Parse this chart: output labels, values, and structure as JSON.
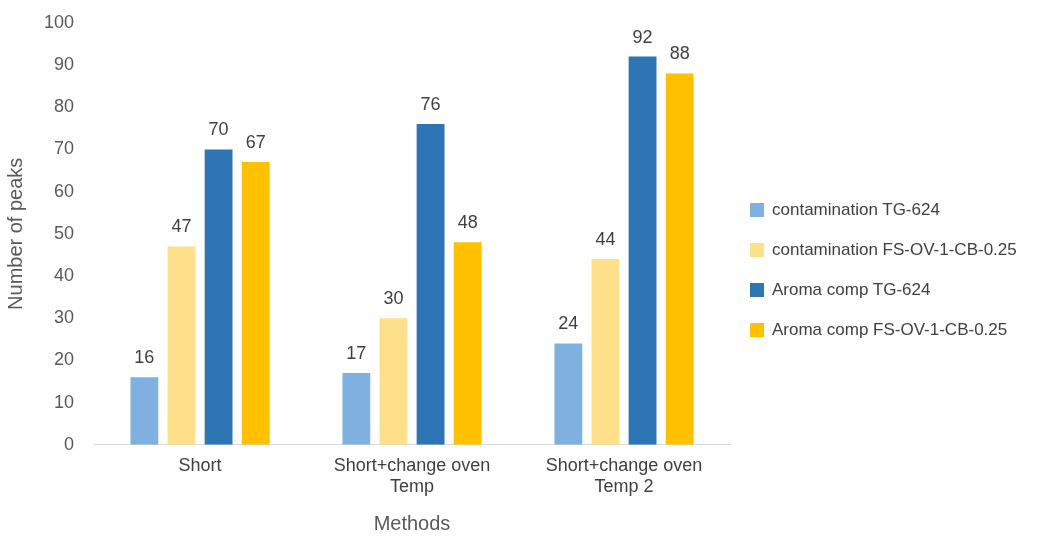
{
  "chart_data": {
    "type": "bar",
    "xlabel": "Methods",
    "ylabel": "Number of peaks",
    "categories": [
      "Short",
      "Short+change oven Temp",
      "Short+change oven Temp 2"
    ],
    "series": [
      {
        "name": "contamination TG-624",
        "color": "#7fb1e0",
        "values": [
          16,
          17,
          24
        ]
      },
      {
        "name": "contamination FS-OV-1-CB-0.25",
        "color": "#ffe08a",
        "values": [
          47,
          30,
          44
        ]
      },
      {
        "name": "Aroma comp TG-624",
        "color": "#2e75b6",
        "values": [
          70,
          76,
          92
        ]
      },
      {
        "name": "Aroma comp FS-OV-1-CB-0.25",
        "color": "#ffc000",
        "values": [
          67,
          48,
          88
        ]
      }
    ],
    "ylim": [
      0,
      100
    ],
    "yticks": [
      0,
      10,
      20,
      30,
      40,
      50,
      60,
      70,
      80,
      90,
      100
    ],
    "grid": false,
    "legend": "right",
    "data_labels": true
  }
}
